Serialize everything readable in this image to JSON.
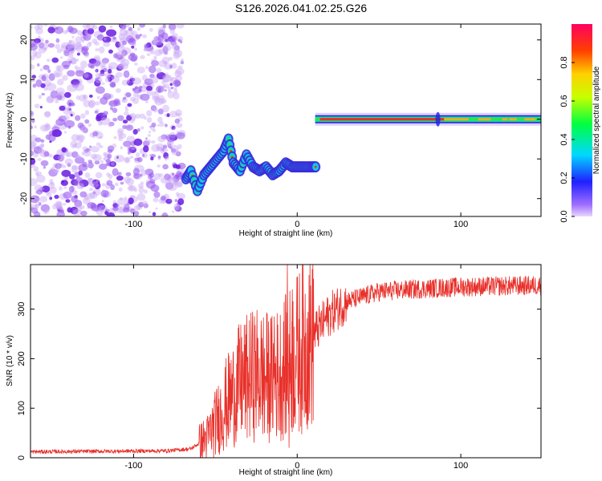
{
  "chart_data": [
    {
      "type": "heatmap",
      "title": "S126.2026.041.02.25.G26",
      "xlabel": "Height of straight line (km)",
      "ylabel": "Frequency (Hz)",
      "xlim": [
        -163,
        149
      ],
      "ylim": [
        -24.5,
        24
      ],
      "x_ticks": [
        -100,
        0,
        100
      ],
      "x_tick_labels": [
        "-100",
        "0",
        "100"
      ],
      "y_ticks": [
        20,
        10,
        0,
        -10,
        -20
      ],
      "y_tick_labels": [
        "20",
        "10",
        "0",
        "-10",
        "-20"
      ],
      "colorbar": {
        "label": "Normalized spectral amplitude",
        "range": [
          0,
          1
        ],
        "ticks": [
          0,
          0.2,
          0.4,
          0.6,
          0.8
        ],
        "tick_labels": [
          "0.0",
          "0.2",
          "0.4",
          "0.6",
          "0.8"
        ]
      },
      "noise_region_x": [
        -163,
        -70
      ],
      "ridge": [
        [
          -68,
          -15
        ],
        [
          -65,
          -13
        ],
        [
          -61,
          -18
        ],
        [
          -57,
          -14
        ],
        [
          -53,
          -12
        ],
        [
          -49,
          -10
        ],
        [
          -45,
          -8
        ],
        [
          -42,
          -5
        ],
        [
          -39,
          -11
        ],
        [
          -35,
          -13
        ],
        [
          -31,
          -9
        ],
        [
          -27,
          -12
        ],
        [
          -23,
          -13
        ],
        [
          -19,
          -12
        ],
        [
          -15,
          -14
        ],
        [
          -11,
          -13
        ],
        [
          -7,
          -11
        ],
        [
          -3,
          -12
        ],
        [
          1,
          -12
        ],
        [
          5,
          -12
        ],
        [
          9,
          -12
        ],
        [
          12,
          -12
        ]
      ],
      "carrier": {
        "x": [
          11,
          149
        ],
        "frequency": 0,
        "peak_amplitude": 0.95
      }
    },
    {
      "type": "line",
      "xlabel": "Height of straight line (km)",
      "ylabel": "SNR (10 * v/v)",
      "xlim": [
        -163,
        149
      ],
      "ylim": [
        0,
        390
      ],
      "x_ticks": [
        -100,
        0,
        100
      ],
      "x_tick_labels": [
        "-100",
        "0",
        "100"
      ],
      "y_ticks": [
        0,
        100,
        200,
        300
      ],
      "y_tick_labels": [
        "0",
        "100",
        "200",
        "300"
      ],
      "color": "#e8302a",
      "trend": [
        [
          -163,
          12
        ],
        [
          -120,
          13
        ],
        [
          -80,
          14
        ],
        [
          -65,
          18
        ],
        [
          -55,
          40
        ],
        [
          -45,
          100
        ],
        [
          -35,
          150
        ],
        [
          -25,
          170
        ],
        [
          -15,
          160
        ],
        [
          -8,
          180
        ],
        [
          0,
          210
        ],
        [
          10,
          250
        ],
        [
          20,
          290
        ],
        [
          30,
          315
        ],
        [
          40,
          325
        ],
        [
          50,
          335
        ],
        [
          70,
          340
        ],
        [
          100,
          345
        ],
        [
          149,
          348
        ]
      ],
      "extremes": [
        {
          "x": -6,
          "y": 390
        },
        {
          "x": -5,
          "y": 20
        },
        {
          "x": -3,
          "y": 340
        },
        {
          "x": -14,
          "y": 285
        },
        {
          "x": -22,
          "y": 260
        },
        {
          "x": -20,
          "y": 50
        }
      ]
    }
  ]
}
